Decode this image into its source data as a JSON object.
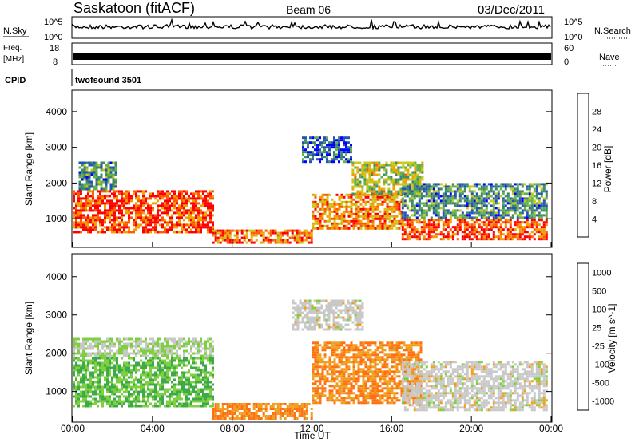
{
  "header": {
    "station": "Saskatoon (fitACF)",
    "beam": "Beam 06",
    "date": "03/Dec/2011"
  },
  "strips": {
    "nsky_label": "N.Sky",
    "nsky_ticks": [
      "10^5",
      "10^0"
    ],
    "nsearch_label": "N.Search",
    "nsearch_ticks": [
      "10^5",
      "10^0"
    ],
    "freq_label": "Freq.",
    "freq_unit": "[MHz]",
    "freq_ticks": [
      "18",
      "8"
    ],
    "nave_label": "Nave",
    "nave_ticks": [
      "60",
      "0"
    ],
    "cpid_label": "CPID",
    "cpid_value": "twofsound 3501"
  },
  "chart_data": [
    {
      "type": "heatmap",
      "title": "",
      "xlabel": "Time UT",
      "ylabel": "Slant Range [km]",
      "x_ticks": [
        "00:00",
        "04:00",
        "08:00",
        "12:00",
        "16:00",
        "20:00",
        "00:00"
      ],
      "x_range_hours": [
        0,
        24
      ],
      "y_ticks": [
        1000,
        2000,
        3000,
        4000
      ],
      "ylim": [
        200,
        4600
      ],
      "colorbar": {
        "label": "Power [dB]",
        "ticks": [
          "28",
          "24",
          "20",
          "16",
          "12",
          "8",
          "4"
        ],
        "range": [
          0,
          30
        ],
        "colors": [
          "#0000ff",
          "#2452b8",
          "#3c8a6a",
          "#66b24a",
          "#c8c81a",
          "#f0a000",
          "#ff5a00",
          "#ff0000"
        ]
      },
      "regions": [
        {
          "t0": 0.0,
          "t1": 7.0,
          "r0": 600,
          "r1": 1800,
          "value": 26
        },
        {
          "t0": 0.3,
          "t1": 2.2,
          "r0": 1800,
          "r1": 2600,
          "value": 10
        },
        {
          "t0": 7.0,
          "t1": 12.0,
          "r0": 300,
          "r1": 700,
          "value": 24
        },
        {
          "t0": 12.0,
          "t1": 16.5,
          "r0": 700,
          "r1": 1700,
          "value": 22
        },
        {
          "t0": 14.0,
          "t1": 17.5,
          "r0": 1700,
          "r1": 2600,
          "value": 16
        },
        {
          "t0": 16.5,
          "t1": 23.8,
          "r0": 400,
          "r1": 1000,
          "value": 26
        },
        {
          "t0": 16.5,
          "t1": 23.8,
          "r0": 1000,
          "r1": 2000,
          "value": 10
        },
        {
          "t0": 11.5,
          "t1": 14.0,
          "r0": 2600,
          "r1": 3300,
          "value": 6
        }
      ]
    },
    {
      "type": "heatmap",
      "title": "",
      "xlabel": "Time UT",
      "ylabel": "Slant Range [km]",
      "x_ticks": [
        "00:00",
        "04:00",
        "08:00",
        "12:00",
        "16:00",
        "20:00",
        "00:00"
      ],
      "x_range_hours": [
        0,
        24
      ],
      "y_ticks": [
        1000,
        2000,
        3000,
        4000
      ],
      "ylim": [
        200,
        4600
      ],
      "colorbar": {
        "label": "Velocity [m s^-1]",
        "ticks": [
          "1000",
          "500",
          "100",
          "25",
          "-25",
          "-100",
          "-500",
          "-1000"
        ],
        "colors": [
          "#2040c0",
          "#2a8a8a",
          "#3caa4a",
          "#7ed040",
          "#c8c8c8",
          "#f0a020",
          "#ff7010",
          "#ff2020"
        ]
      },
      "regions": [
        {
          "t0": 0.0,
          "t1": 7.0,
          "r0": 600,
          "r1": 1900,
          "value": 100
        },
        {
          "t0": 0.0,
          "t1": 7.0,
          "r0": 1900,
          "r1": 2400,
          "value": 25
        },
        {
          "t0": 7.0,
          "t1": 12.0,
          "r0": 300,
          "r1": 700,
          "value": -100
        },
        {
          "t0": 12.0,
          "t1": 17.5,
          "r0": 700,
          "r1": 2300,
          "value": -100
        },
        {
          "t0": 16.5,
          "t1": 23.8,
          "r0": 500,
          "r1": 1800,
          "value": 0
        },
        {
          "t0": 11.0,
          "t1": 14.5,
          "r0": 2600,
          "r1": 3400,
          "value": 0
        }
      ]
    }
  ]
}
